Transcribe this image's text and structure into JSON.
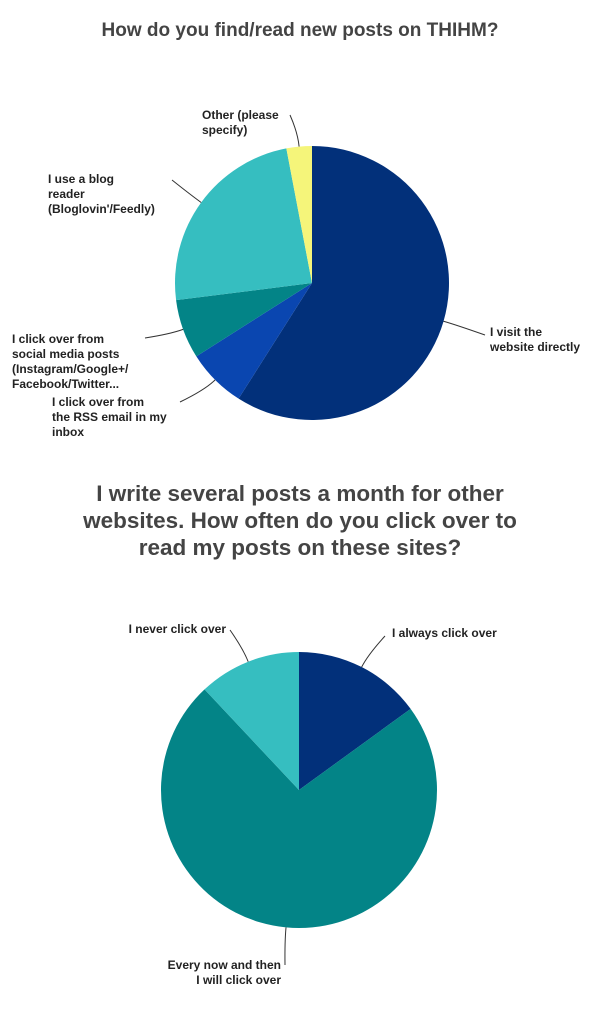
{
  "chart_data": [
    {
      "type": "pie",
      "title": "How do you find/read new posts on THIHM?",
      "categories": [
        "I visit the\nwebsite directly",
        "I click over from\nthe RSS email in my\ninbox",
        "I click over from\nsocial media posts\n(Instagram/Google+/\nFacebook/Twitter...",
        "I use a blog\nreader\n(Bloglovin'/Feedly)",
        "Other (please\nspecify)"
      ],
      "values": [
        59,
        7,
        7,
        24,
        3
      ],
      "colors": [
        "#02307a",
        "#0a46b0",
        "#038487",
        "#36bec0",
        "#f5f57a"
      ]
    },
    {
      "type": "pie",
      "title": "I write several posts a month for other websites. How often do you click over to read my posts on these sites?",
      "categories": [
        "I always click over",
        "Every now and then\nI will click over",
        "I never click over"
      ],
      "values": [
        15,
        73,
        12
      ],
      "colors": [
        "#02307a",
        "#038487",
        "#36bec0"
      ]
    }
  ]
}
